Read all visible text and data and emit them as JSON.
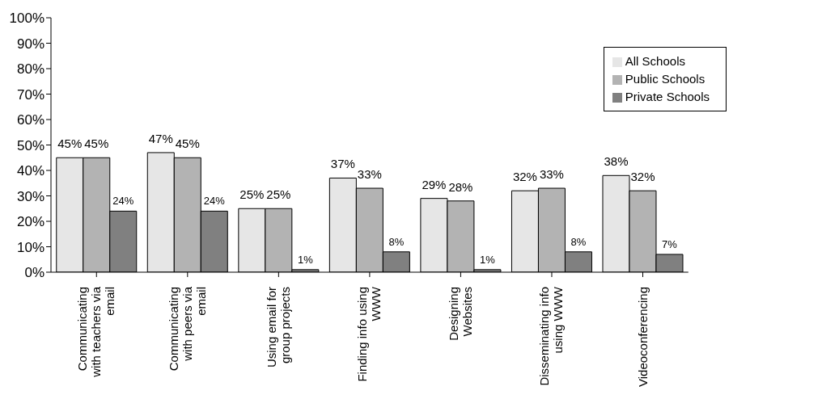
{
  "chart_data": {
    "type": "bar",
    "categories": [
      "Communicating\nwith teachers via\nemail",
      "Communicating\nwith peers via\nemail",
      "Using email for\ngroup projects",
      "Finding info using\nWWW",
      "Designing\nWebsites",
      "Disseminating info\nusing WWW",
      "Videoconferencing"
    ],
    "series": [
      {
        "name": "All Schools",
        "color": "#e6e6e6",
        "values": [
          45,
          47,
          25,
          37,
          29,
          32,
          38
        ],
        "value_labels": [
          "45%",
          "47%",
          "25%",
          "37%",
          "29%",
          "32%",
          "38%"
        ]
      },
      {
        "name": "Public Schools",
        "color": "#b3b3b3",
        "values": [
          45,
          45,
          25,
          33,
          28,
          33,
          32
        ],
        "value_labels": [
          "45%",
          "45%",
          "25%",
          "33%",
          "28%",
          "33%",
          "32%"
        ]
      },
      {
        "name": "Private Schools",
        "color": "#808080",
        "values": [
          24,
          24,
          1,
          8,
          1,
          8,
          7
        ],
        "value_labels": [
          "24%",
          "24%",
          "1%",
          "8%",
          "1%",
          "8%",
          "7%"
        ]
      }
    ],
    "ylim": [
      0,
      100
    ],
    "yticks": [
      {
        "value": 0,
        "label": "0%"
      },
      {
        "value": 10,
        "label": "10%"
      },
      {
        "value": 20,
        "label": "20%"
      },
      {
        "value": 30,
        "label": "30%"
      },
      {
        "value": 40,
        "label": "40%"
      },
      {
        "value": 50,
        "label": "50%"
      },
      {
        "value": 60,
        "label": "60%"
      },
      {
        "value": 70,
        "label": "70%"
      },
      {
        "value": 80,
        "label": "80%"
      },
      {
        "value": 90,
        "label": "90%"
      },
      {
        "value": 100,
        "label": "100%"
      }
    ],
    "legend": "top right"
  }
}
